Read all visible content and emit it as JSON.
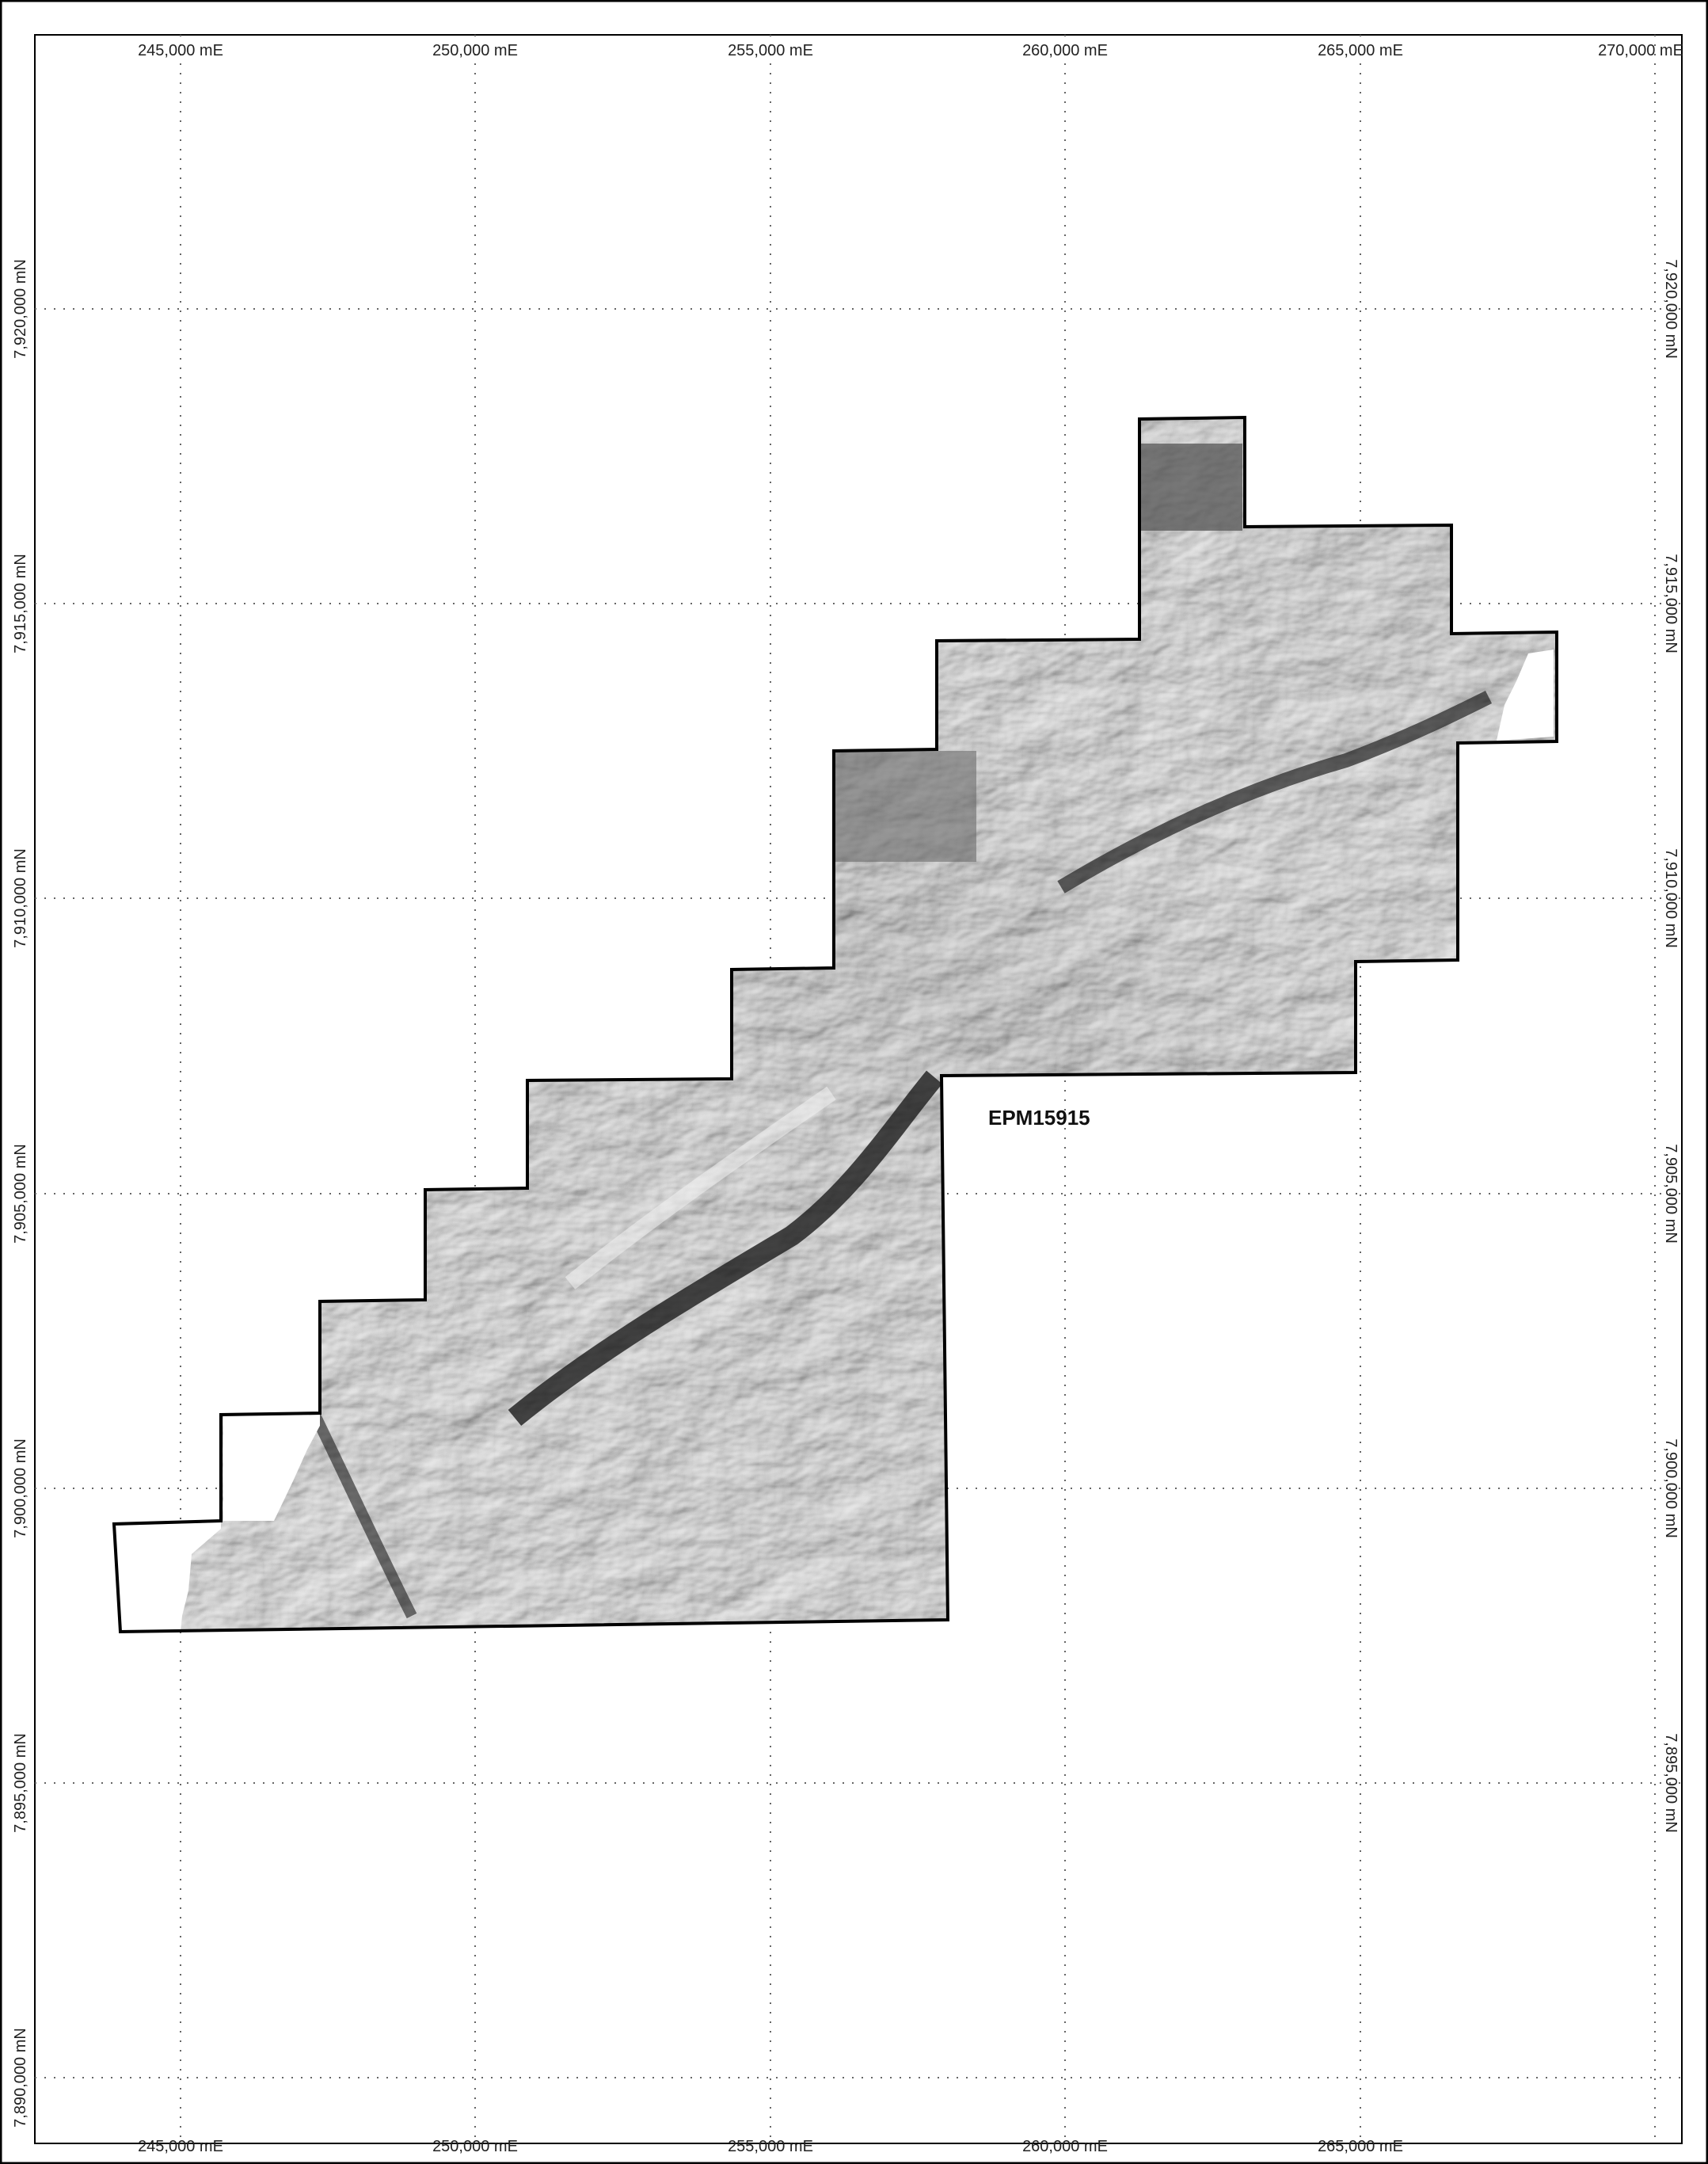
{
  "map": {
    "tenement_label": "EPM15915",
    "easting_labels_top": [
      "245,000 mE",
      "250,000 mE",
      "255,000 mE",
      "260,000 mE",
      "265,000 mE",
      "270,000 mE"
    ],
    "easting_labels_bottom": [
      "245,000 mE",
      "250,000 mE",
      "255,000 mE",
      "260,000 mE",
      "265,000 mE"
    ],
    "northing_labels": [
      "7,920,000 mN",
      "7,915,000 mN",
      "7,910,000 mN",
      "7,905,000 mN",
      "7,900,000 mN",
      "7,895,000 mN",
      "7,890,000 mN"
    ],
    "northing_labels_right": [
      "7,920,000 mN",
      "7,915,000 mN",
      "7,910,000 mN",
      "7,905,000 mN",
      "7,900,000 mN",
      "7,895,000 mN"
    ],
    "colors": {
      "frame": "#000000",
      "grid": "#666666",
      "imagery_light": "#d8d8d8",
      "imagery_mid": "#9a9a9a",
      "imagery_dark": "#2a2a2a"
    }
  }
}
